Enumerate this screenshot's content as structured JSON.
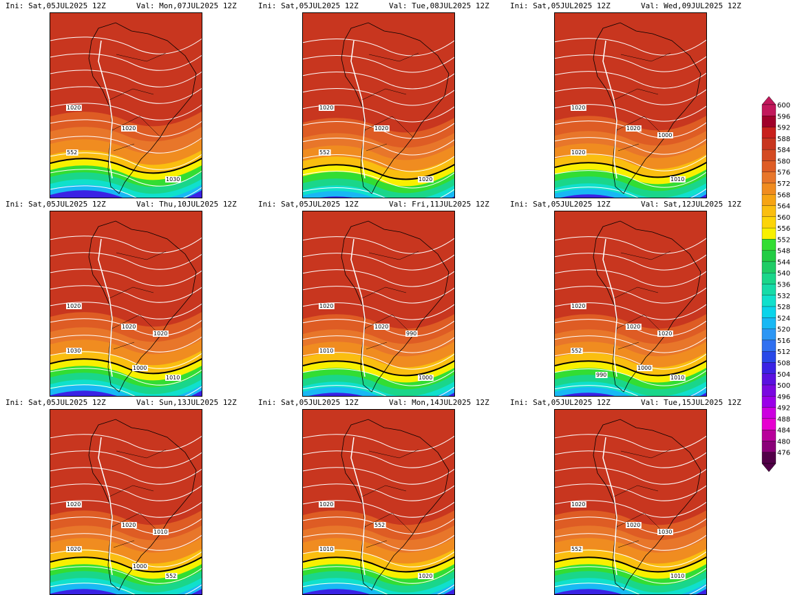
{
  "panels": [
    {
      "ini": "Ini: Sat,05JUL2025 12Z",
      "valid": "Val: Mon,07JUL2025 12Z",
      "frac": 0.0,
      "isobar_labels": [
        "1020",
        "1020",
        "552",
        "1030"
      ]
    },
    {
      "ini": "Ini: Sat,05JUL2025 12Z",
      "valid": "Val: Tue,08JUL2025 12Z",
      "frac": 0.15,
      "isobar_labels": [
        "1020",
        "1020",
        "552",
        "1020"
      ]
    },
    {
      "ini": "Ini: Sat,05JUL2025 12Z",
      "valid": "Val: Wed,09JUL2025 12Z",
      "frac": 0.1,
      "isobar_labels": [
        "1020",
        "1020",
        "1020",
        "1010",
        "1000"
      ]
    },
    {
      "ini": "Ini: Sat,05JUL2025 12Z",
      "valid": "Val: Thu,10JUL2025 12Z",
      "frac": 0.05,
      "isobar_labels": [
        "1020",
        "1020",
        "1030",
        "1010",
        "1020",
        "1000"
      ]
    },
    {
      "ini": "Ini: Sat,05JUL2025 12Z",
      "valid": "Val: Fri,11JUL2025 12Z",
      "frac": 0.1,
      "isobar_labels": [
        "1020",
        "1020",
        "1010",
        "1000",
        "990"
      ]
    },
    {
      "ini": "Ini: Sat,05JUL2025 12Z",
      "valid": "Val: Sat,12JUL2025 12Z",
      "frac": 0.1,
      "isobar_labels": [
        "1020",
        "1020",
        "552",
        "1010",
        "1020",
        "1000",
        "990"
      ]
    },
    {
      "ini": "Ini: Sat,05JUL2025 12Z",
      "valid": "Val: Sun,13JUL2025 12Z",
      "frac": 0.05,
      "isobar_labels": [
        "1020",
        "1020",
        "1020",
        "552",
        "1010",
        "1000"
      ]
    },
    {
      "ini": "Ini: Sat,05JUL2025 12Z",
      "valid": "Val: Mon,14JUL2025 12Z",
      "frac": 0.05,
      "isobar_labels": [
        "1020",
        "552",
        "1010",
        "1020"
      ]
    },
    {
      "ini": "Ini: Sat,05JUL2025 12Z",
      "valid": "Val: Tue,15JUL2025 12Z",
      "frac": 0.05,
      "isobar_labels": [
        "1020",
        "1020",
        "552",
        "1010",
        "1030"
      ]
    }
  ],
  "colorbar": {
    "levels": [
      "600",
      "596",
      "592",
      "588",
      "584",
      "580",
      "576",
      "572",
      "568",
      "564",
      "560",
      "556",
      "552",
      "548",
      "544",
      "540",
      "536",
      "532",
      "528",
      "524",
      "520",
      "516",
      "512",
      "508",
      "504",
      "500",
      "496",
      "492",
      "488",
      "484",
      "480",
      "476"
    ],
    "colors": [
      "#c2185b",
      "#a0002a",
      "#c8201c",
      "#c8361f",
      "#d44a22",
      "#de5c24",
      "#e8762a",
      "#f08c20",
      "#f6a414",
      "#fabe10",
      "#fcd408",
      "#f8f000",
      "#33dd33",
      "#22cc44",
      "#1fcc66",
      "#1ad68a",
      "#16dba8",
      "#10e0cc",
      "#0ad4ea",
      "#18b8f4",
      "#2c96f4",
      "#3070f0",
      "#2848e8",
      "#3a22e4",
      "#5a10e0",
      "#7a08e0",
      "#9a00e8",
      "#cc00e0",
      "#e600d0",
      "#b8009a",
      "#8a0078",
      "#520048"
    ]
  }
}
